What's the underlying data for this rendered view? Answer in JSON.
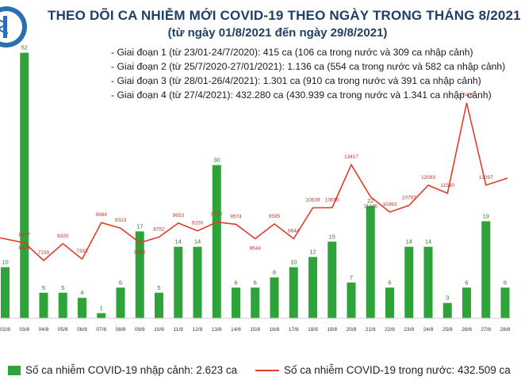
{
  "title_line1": "THEO DÕI CA NHIỄM MỚI COVID-19 THEO NGÀY TRONG THÁNG 8/2021",
  "title_line2": "(từ ngày 01/8/2021 đến ngày 29/8/2021)",
  "phases": [
    "Giai đoạn 1 (từ 23/01-24/7/2020): 415 ca (106 ca trong nước và 309 ca nhập cảnh)",
    "Giai đoạn 2 (từ 25/7/2020-27/01/2021): 1.136 ca (554 ca trong nước và 582 ca nhập cảnh)",
    "Giai đoạn 3 (từ 28/01-26/4/2021): 1.301 ca (910 ca trong nước và 391 ca nhập cảnh)",
    "Giai đoạn 4 (từ 27/4/2021): 432.280 ca (430.939 ca trong nước và 1.341 ca nhập cảnh)"
  ],
  "legend": {
    "imported": "Số ca nhiễm COVID-19 nhập cảnh: 2.623 ca",
    "domestic": "Số ca nhiễm COVID-19 trong nước: 432.509 ca"
  },
  "colors": {
    "bars": "#2ea33a",
    "line": "#e23b2a",
    "title": "#1f3f66"
  },
  "chart_data": {
    "type": "bar+line",
    "categories": [
      "02/8",
      "03/8",
      "04/8",
      "05/8",
      "06/8",
      "07/8",
      "08/8",
      "09/8",
      "10/8",
      "11/8",
      "12/8",
      "13/8",
      "14/8",
      "15/8",
      "16/8",
      "17/8",
      "18/8",
      "19/8",
      "20/8",
      "21/8",
      "22/8",
      "23/8",
      "24/8",
      "25/8",
      "26/8",
      "27/8",
      "28/8"
    ],
    "series": [
      {
        "name": "Số ca nhiễm COVID-19 nhập cảnh: 2.623 ca",
        "type": "bar",
        "values": [
          10,
          52,
          5,
          5,
          4,
          1,
          6,
          17,
          5,
          14,
          14,
          30,
          6,
          6,
          8,
          10,
          12,
          15,
          7,
          22,
          6,
          14,
          14,
          3,
          6,
          19,
          6
        ]
      },
      {
        "name": "Số ca nhiễm COVID-19 trong nước: 432.509 ca",
        "type": "line",
        "values": [
          null,
          8377,
          7239,
          8320,
          7333,
          9684,
          9323,
          8385,
          8752,
          9653,
          9150,
          9710,
          9574,
          8644,
          9595,
          8644,
          10639,
          10650,
          13417,
          11346,
          10363,
          10797,
          12093,
          11580,
          17409,
          12097,
          null
        ],
        "labels": [
          null,
          "8377",
          "7239",
          "8320",
          "7333",
          "9684",
          "9323",
          "8385",
          "8752",
          "9653",
          "9150",
          "9710",
          "9574",
          "8644",
          "9595",
          "8644",
          "10639",
          "10650",
          "13417",
          "11346",
          "10363",
          "10797",
          "12093",
          "11580",
          "17409",
          "12097",
          null
        ]
      }
    ],
    "extra_labels": {
      "prev_day_line_start": "8618"
    },
    "bar_ylim": [
      0,
      58
    ],
    "line_ylim": [
      3500,
      18600
    ],
    "legend_position": "bottom",
    "grid": false
  }
}
